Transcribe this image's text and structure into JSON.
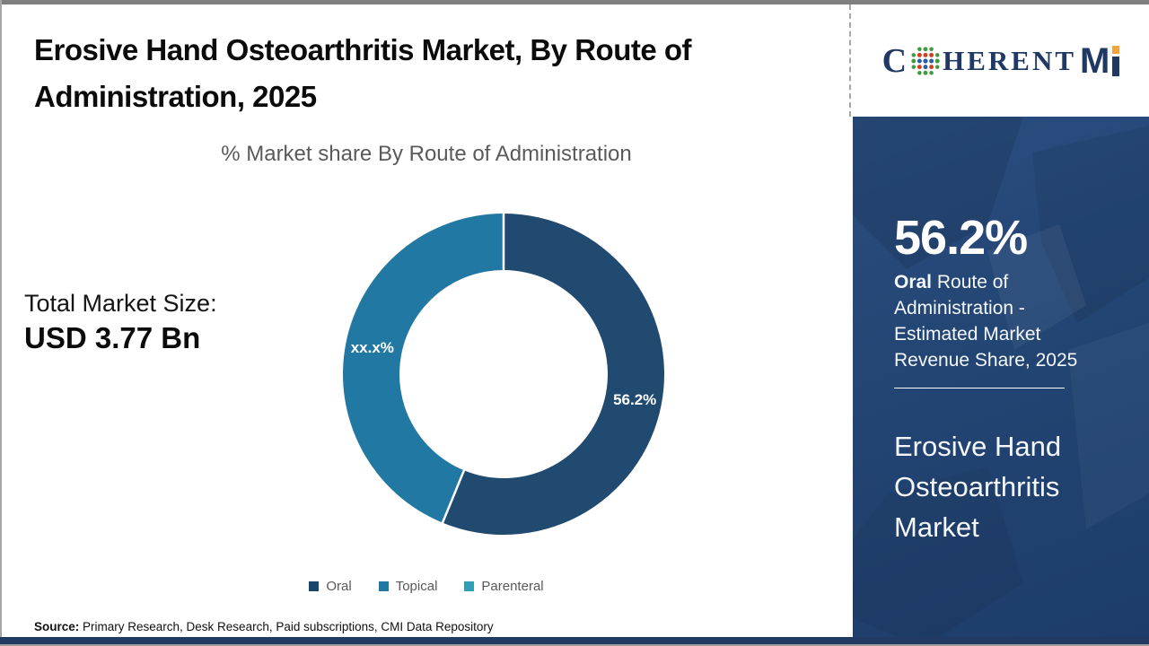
{
  "header": {
    "title": "Erosive Hand Osteoarthritis Market, By Route of Administration, 2025"
  },
  "logo": {
    "part_c": "C",
    "part_herent": "HERENT",
    "part_m": "M",
    "brand_navy": "#1f3864",
    "accent_orange": "#f2a33c"
  },
  "left_stats": {
    "label": "Total Market Size:",
    "value": "USD 3.77 Bn"
  },
  "chart_data": {
    "type": "pie",
    "subtype": "donut",
    "title": "% Market share By Route of Administration",
    "categories": [
      "Oral",
      "Topical",
      "Parenteral"
    ],
    "legend": [
      {
        "label": "Oral",
        "color": "#17476b"
      },
      {
        "label": "Topical",
        "color": "#2178a3"
      },
      {
        "label": "Parenteral",
        "color": "#31a0b4"
      }
    ],
    "slices": [
      {
        "name": "Oral",
        "value": 56.2,
        "label": "56.2%",
        "color": "#204a70"
      },
      {
        "name": "Topical + Parenteral (value masked)",
        "value": 43.8,
        "label": "xx.x%",
        "color": "#2178a3"
      }
    ],
    "geometry": {
      "outer_radius": 179,
      "inner_radius": 116,
      "label_radius": 149,
      "start_angle_deg": 0
    },
    "legend_position": "bottom",
    "note_visible": "Non-Oral share shown masked as xx.x% in chart"
  },
  "panel": {
    "share": "56.2%",
    "desc_bold": "Oral",
    "desc_rest": " Route of Administration - Estimated Market Revenue Share, 2025",
    "market_title": "Erosive Hand Osteoarthritis Market",
    "background": "#234573"
  },
  "source": {
    "label": "Source:",
    "text": " Primary Research, Desk Research, Paid subscriptions, CMI Data Repository"
  },
  "frame": {
    "top_bar_color": "#7f7f7f",
    "bottom_bar_color": "#223a63"
  }
}
